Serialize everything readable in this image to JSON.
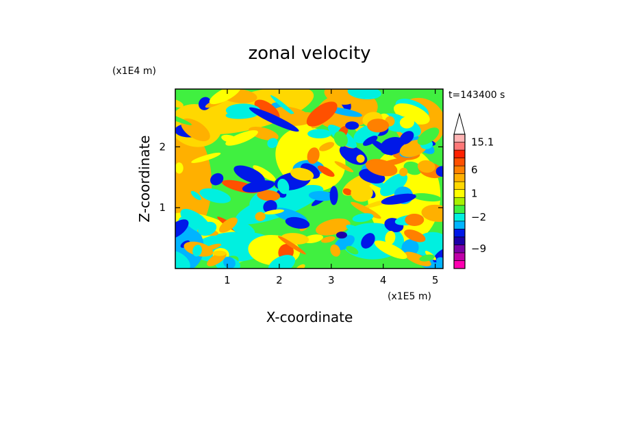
{
  "chart_data": {
    "type": "heatmap",
    "title": "zonal velocity",
    "xlabel": "X-coordinate",
    "ylabel": "Z-coordinate",
    "x_scale_label": "(x1E5 m)",
    "y_scale_label": "(x1E4 m)",
    "time_label": "t=143400 s",
    "xlim": [
      0,
      5.15
    ],
    "ylim": [
      0,
      2.95
    ],
    "x_ticks": [
      "1",
      "2",
      "3",
      "4",
      "5"
    ],
    "y_ticks": [
      "1",
      "2"
    ],
    "colorbar": {
      "tick_labels": [
        {
          "value": 15.1,
          "label": "15.1"
        },
        {
          "value": 6,
          "label": "6"
        },
        {
          "value": 1,
          "label": "1"
        },
        {
          "value": -2,
          "label": "−2"
        },
        {
          "value": -9,
          "label": "−9"
        }
      ],
      "levels": [
        {
          "color": "#ff00b0"
        },
        {
          "color": "#c000a8"
        },
        {
          "color": "#7c00a8"
        },
        {
          "color": "#1c00a8"
        },
        {
          "color": "#0018e8"
        },
        {
          "color": "#00b4ff"
        },
        {
          "color": "#00f0e0"
        },
        {
          "color": "#40f040"
        },
        {
          "color": "#a8f000"
        },
        {
          "color": "#ffff00"
        },
        {
          "color": "#ffd800"
        },
        {
          "color": "#ffb000"
        },
        {
          "color": "#ff8000"
        },
        {
          "color": "#ff5000"
        },
        {
          "color": "#ff2000"
        },
        {
          "color": "#ff7878"
        },
        {
          "color": "#ffb4b4"
        },
        {
          "color": "#ffffff"
        }
      ]
    }
  }
}
